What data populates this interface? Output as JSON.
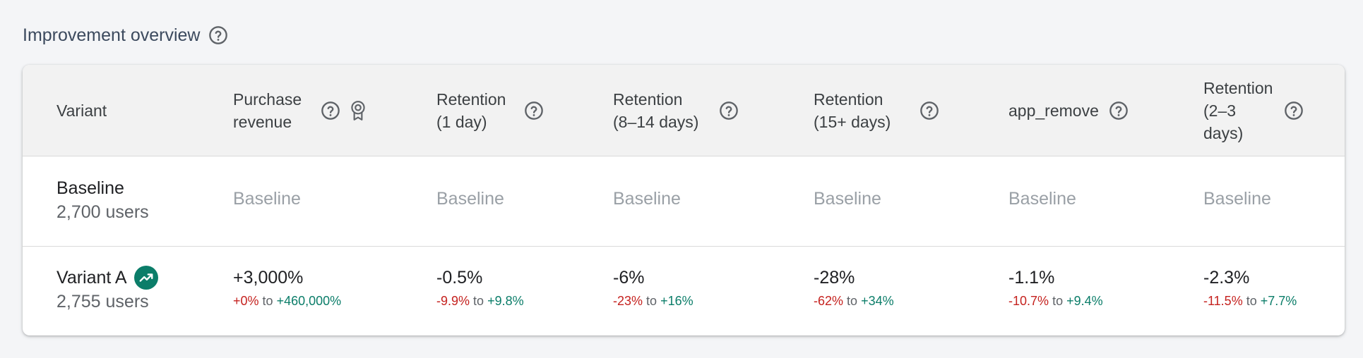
{
  "title": "Improvement overview",
  "columns": {
    "variant": "Variant",
    "c1": "Purchase revenue",
    "c2": "Retention (1 day)",
    "c3": "Retention (8–14 days)",
    "c4": "Retention (15+ days)",
    "c5": "app_remove",
    "c6": "Retention (2–3 days)"
  },
  "baseline": {
    "name": "Baseline",
    "users": "2,700 users",
    "value": "Baseline"
  },
  "variant_a": {
    "name": "Variant A",
    "users": "2,755 users",
    "to": "to",
    "c1": {
      "pct": "+3,000%",
      "lo": "+0%",
      "hi": "+460,000%"
    },
    "c2": {
      "pct": "-0.5%",
      "lo": "-9.9%",
      "hi": "+9.8%"
    },
    "c3": {
      "pct": "-6%",
      "lo": "-23%",
      "hi": "+16%"
    },
    "c4": {
      "pct": "-28%",
      "lo": "-62%",
      "hi": "+34%"
    },
    "c5": {
      "pct": "-1.1%",
      "lo": "-10.7%",
      "hi": "+9.4%"
    },
    "c6": {
      "pct": "-2.3%",
      "lo": "-11.5%",
      "hi": "+7.7%"
    }
  },
  "colors": {
    "accent": "#0b7d69",
    "negative": "#c5221f",
    "positive": "#0b7d69"
  },
  "icons": [
    "help-icon",
    "award-icon",
    "trending-up-icon"
  ]
}
